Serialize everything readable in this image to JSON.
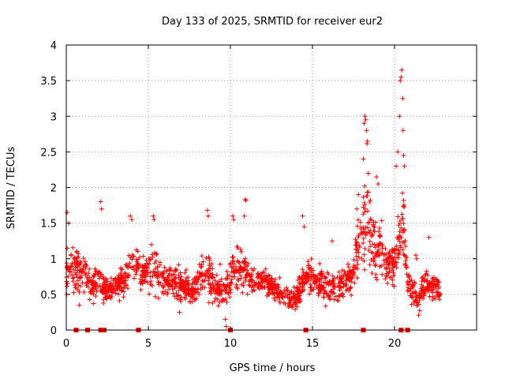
{
  "chart_data": {
    "type": "scatter",
    "title": "Day 133 of 2025, SRMTID for receiver eur2",
    "xlabel": "GPS time / hours",
    "ylabel": "SRMTID / TECUs",
    "xlim": [
      0,
      25
    ],
    "ylim": [
      0,
      4
    ],
    "xticks": [
      "0",
      "5",
      "10",
      "15",
      "20"
    ],
    "yticks": [
      "0",
      "0.5",
      "1",
      "1.5",
      "2",
      "2.5",
      "3",
      "3.5",
      "4"
    ],
    "grid": true,
    "marker": "plus",
    "color": "#ff0000",
    "series": [
      {
        "name": "SRMTID",
        "envelope": [
          [
            0.0,
            0.35,
            1.35
          ],
          [
            0.3,
            0.4,
            1.3
          ],
          [
            0.6,
            0.4,
            1.25
          ],
          [
            0.9,
            0.45,
            1.2
          ],
          [
            1.2,
            0.35,
            1.15
          ],
          [
            1.5,
            0.3,
            0.9
          ],
          [
            1.8,
            0.3,
            0.95
          ],
          [
            2.1,
            0.3,
            1.1
          ],
          [
            2.4,
            0.3,
            0.8
          ],
          [
            2.7,
            0.3,
            0.85
          ],
          [
            3.0,
            0.35,
            0.9
          ],
          [
            3.3,
            0.4,
            1.0
          ],
          [
            3.6,
            0.45,
            1.0
          ],
          [
            3.9,
            0.55,
            1.4
          ],
          [
            4.2,
            0.55,
            1.3
          ],
          [
            4.5,
            0.5,
            1.2
          ],
          [
            4.8,
            0.45,
            1.1
          ],
          [
            5.1,
            0.45,
            1.2
          ],
          [
            5.4,
            0.4,
            1.3
          ],
          [
            5.7,
            0.35,
            1.1
          ],
          [
            6.0,
            0.35,
            1.0
          ],
          [
            6.3,
            0.35,
            1.0
          ],
          [
            6.6,
            0.35,
            1.0
          ],
          [
            6.9,
            0.3,
            1.0
          ],
          [
            7.2,
            0.3,
            0.9
          ],
          [
            7.5,
            0.3,
            0.85
          ],
          [
            7.8,
            0.25,
            0.8
          ],
          [
            8.1,
            0.3,
            1.1
          ],
          [
            8.4,
            0.3,
            1.35
          ],
          [
            8.7,
            0.3,
            1.2
          ],
          [
            9.0,
            0.3,
            1.05
          ],
          [
            9.3,
            0.25,
            1.0
          ],
          [
            9.6,
            0.15,
            0.9
          ],
          [
            9.9,
            0.2,
            1.2
          ],
          [
            10.2,
            0.35,
            1.25
          ],
          [
            10.5,
            0.4,
            1.3
          ],
          [
            10.8,
            0.45,
            1.25
          ],
          [
            11.1,
            0.4,
            1.05
          ],
          [
            11.4,
            0.4,
            1.0
          ],
          [
            11.7,
            0.4,
            0.95
          ],
          [
            12.0,
            0.4,
            1.0
          ],
          [
            12.3,
            0.35,
            0.9
          ],
          [
            12.6,
            0.35,
            0.85
          ],
          [
            12.9,
            0.3,
            0.75
          ],
          [
            13.2,
            0.3,
            0.7
          ],
          [
            13.5,
            0.25,
            0.65
          ],
          [
            13.8,
            0.25,
            0.6
          ],
          [
            14.1,
            0.25,
            0.75
          ],
          [
            14.4,
            0.35,
            0.95
          ],
          [
            14.7,
            0.4,
            1.1
          ],
          [
            15.0,
            0.4,
            1.05
          ],
          [
            15.3,
            0.35,
            1.0
          ],
          [
            15.6,
            0.3,
            0.95
          ],
          [
            15.9,
            0.25,
            0.9
          ],
          [
            16.2,
            0.25,
            0.9
          ],
          [
            16.5,
            0.3,
            0.95
          ],
          [
            16.8,
            0.35,
            1.0
          ],
          [
            17.1,
            0.4,
            1.0
          ],
          [
            17.4,
            0.45,
            1.05
          ],
          [
            17.7,
            0.5,
            1.6
          ],
          [
            18.0,
            0.6,
            2.0
          ],
          [
            18.3,
            0.7,
            2.8
          ],
          [
            18.6,
            0.6,
            2.1
          ],
          [
            18.9,
            0.55,
            1.75
          ],
          [
            19.2,
            0.55,
            1.7
          ],
          [
            19.5,
            0.5,
            1.4
          ],
          [
            19.8,
            0.5,
            1.2
          ],
          [
            20.1,
            0.6,
            1.6
          ],
          [
            20.4,
            0.7,
            2.2
          ],
          [
            20.6,
            0.65,
            2.0
          ],
          [
            20.8,
            0.3,
            0.95
          ],
          [
            21.1,
            0.25,
            0.85
          ],
          [
            21.4,
            0.15,
            0.7
          ],
          [
            21.7,
            0.25,
            0.85
          ],
          [
            22.0,
            0.3,
            0.95
          ],
          [
            22.3,
            0.35,
            0.85
          ],
          [
            22.6,
            0.3,
            0.8
          ],
          [
            22.8,
            0.3,
            0.6
          ]
        ],
        "spikes": [
          [
            0.05,
            1.65
          ],
          [
            0.15,
            1.5
          ],
          [
            2.1,
            1.8
          ],
          [
            2.15,
            1.7
          ],
          [
            3.9,
            1.6
          ],
          [
            4.0,
            1.55
          ],
          [
            5.3,
            1.6
          ],
          [
            5.35,
            1.55
          ],
          [
            8.6,
            1.68
          ],
          [
            8.65,
            1.6
          ],
          [
            10.15,
            1.6
          ],
          [
            10.2,
            1.55
          ],
          [
            10.9,
            1.83
          ],
          [
            10.95,
            1.82
          ],
          [
            10.85,
            1.6
          ],
          [
            14.4,
            1.6
          ],
          [
            14.5,
            1.45
          ],
          [
            16.2,
            1.25
          ],
          [
            17.7,
            1.7
          ],
          [
            17.8,
            1.9
          ],
          [
            18.1,
            2.4
          ],
          [
            18.15,
            2.9
          ],
          [
            18.2,
            3.0
          ],
          [
            18.25,
            2.95
          ],
          [
            18.3,
            2.8
          ],
          [
            18.35,
            2.65
          ],
          [
            18.4,
            2.2
          ],
          [
            18.9,
            2.15
          ],
          [
            19.0,
            2.05
          ],
          [
            20.1,
            2.3
          ],
          [
            20.2,
            2.5
          ],
          [
            20.3,
            3.0
          ],
          [
            20.35,
            3.5
          ],
          [
            20.4,
            3.55
          ],
          [
            20.45,
            3.65
          ],
          [
            20.5,
            3.25
          ],
          [
            20.52,
            2.8
          ],
          [
            20.55,
            2.45
          ],
          [
            20.6,
            2.3
          ],
          [
            21.3,
            1.05
          ],
          [
            21.35,
            1.0
          ],
          [
            22.1,
            1.3
          ],
          [
            9.7,
            0.15
          ],
          [
            9.75,
            0.05
          ],
          [
            0.8,
            0.35
          ],
          [
            6.9,
            0.25
          ]
        ],
        "gaps_at_zero": [
          0.6,
          1.3,
          2.1,
          2.3,
          4.4,
          10.0,
          14.6,
          18.1,
          20.4,
          20.8
        ]
      }
    ]
  }
}
